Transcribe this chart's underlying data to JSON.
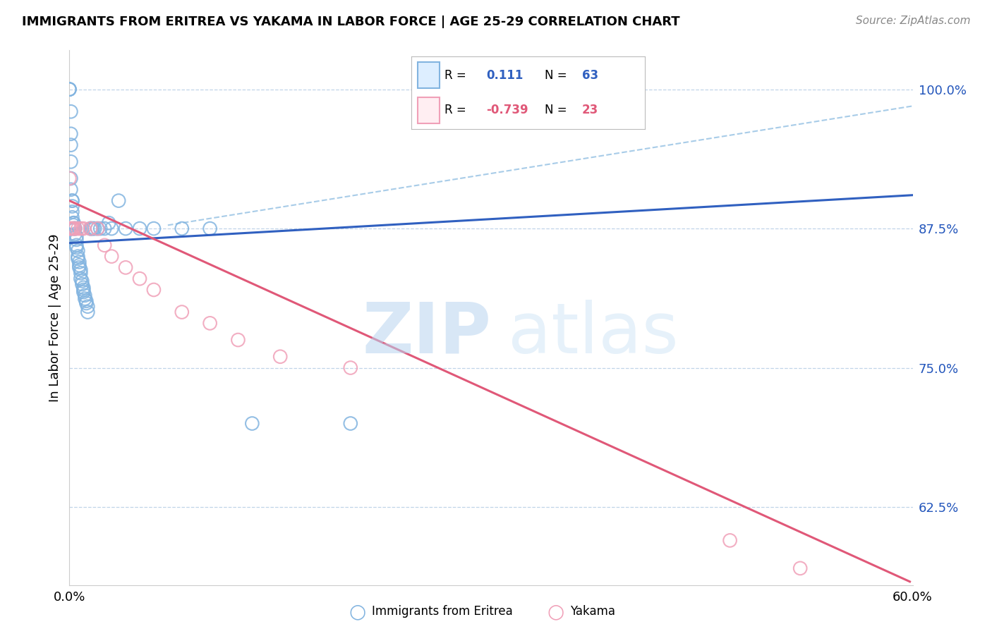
{
  "title": "IMMIGRANTS FROM ERITREA VS YAKAMA IN LABOR FORCE | AGE 25-29 CORRELATION CHART",
  "source": "Source: ZipAtlas.com",
  "ylabel": "In Labor Force | Age 25-29",
  "xmin": 0.0,
  "xmax": 0.6,
  "ymin": 0.555,
  "ymax": 1.035,
  "watermark_zip": "ZIP",
  "watermark_atlas": "atlas",
  "legend_eritrea_R": "0.111",
  "legend_eritrea_N": "63",
  "legend_yakama_R": "-0.739",
  "legend_yakama_N": "23",
  "eritrea_color": "#82b4e0",
  "yakama_color": "#f0a0b8",
  "eritrea_line_color": "#3060c0",
  "yakama_line_color": "#e05878",
  "dashed_line_color": "#a8cce8",
  "eritrea_scatter_x": [
    0.0,
    0.0,
    0.0,
    0.001,
    0.001,
    0.001,
    0.001,
    0.001,
    0.001,
    0.002,
    0.002,
    0.002,
    0.002,
    0.002,
    0.003,
    0.003,
    0.003,
    0.003,
    0.004,
    0.004,
    0.004,
    0.005,
    0.005,
    0.005,
    0.005,
    0.006,
    0.006,
    0.006,
    0.007,
    0.007,
    0.007,
    0.008,
    0.008,
    0.008,
    0.009,
    0.009,
    0.01,
    0.01,
    0.01,
    0.011,
    0.011,
    0.012,
    0.012,
    0.013,
    0.013,
    0.015,
    0.015,
    0.016,
    0.017,
    0.018,
    0.02,
    0.022,
    0.025,
    0.028,
    0.03,
    0.035,
    0.04,
    0.05,
    0.06,
    0.08,
    0.1,
    0.13,
    0.2
  ],
  "eritrea_scatter_y": [
    1.0,
    1.0,
    1.0,
    0.98,
    0.96,
    0.95,
    0.935,
    0.92,
    0.91,
    0.9,
    0.9,
    0.895,
    0.89,
    0.885,
    0.88,
    0.88,
    0.878,
    0.875,
    0.875,
    0.875,
    0.87,
    0.868,
    0.865,
    0.86,
    0.858,
    0.855,
    0.85,
    0.848,
    0.845,
    0.842,
    0.84,
    0.838,
    0.835,
    0.83,
    0.828,
    0.825,
    0.822,
    0.82,
    0.818,
    0.815,
    0.812,
    0.81,
    0.808,
    0.805,
    0.8,
    0.875,
    0.875,
    0.875,
    0.875,
    0.875,
    0.875,
    0.875,
    0.875,
    0.88,
    0.875,
    0.9,
    0.875,
    0.875,
    0.875,
    0.875,
    0.875,
    0.7,
    0.7
  ],
  "yakama_scatter_x": [
    0.0,
    0.0,
    0.001,
    0.002,
    0.003,
    0.004,
    0.006,
    0.008,
    0.01,
    0.015,
    0.02,
    0.025,
    0.03,
    0.04,
    0.05,
    0.06,
    0.08,
    0.1,
    0.12,
    0.15,
    0.2,
    0.47,
    0.52
  ],
  "yakama_scatter_y": [
    0.92,
    0.875,
    0.875,
    0.875,
    0.875,
    0.875,
    0.875,
    0.875,
    0.875,
    0.875,
    0.875,
    0.86,
    0.85,
    0.84,
    0.83,
    0.82,
    0.8,
    0.79,
    0.775,
    0.76,
    0.75,
    0.595,
    0.57
  ],
  "eritrea_trend_x": [
    0.0,
    0.6
  ],
  "eritrea_trend_y": [
    0.862,
    0.905
  ],
  "dashed_trend_x": [
    0.07,
    0.6
  ],
  "dashed_trend_y": [
    0.878,
    0.985
  ],
  "yakama_trend_x": [
    0.0,
    0.598
  ],
  "yakama_trend_y": [
    0.9,
    0.558
  ],
  "ytick_vals": [
    0.625,
    0.75,
    0.875,
    1.0
  ],
  "ytick_labels": [
    "62.5%",
    "75.0%",
    "87.5%",
    "100.0%"
  ],
  "xtick_vals": [
    0.0,
    0.12,
    0.24,
    0.36,
    0.48,
    0.6
  ],
  "xtick_show": [
    "0.0%",
    "",
    "",
    "",
    "",
    "60.0%"
  ]
}
